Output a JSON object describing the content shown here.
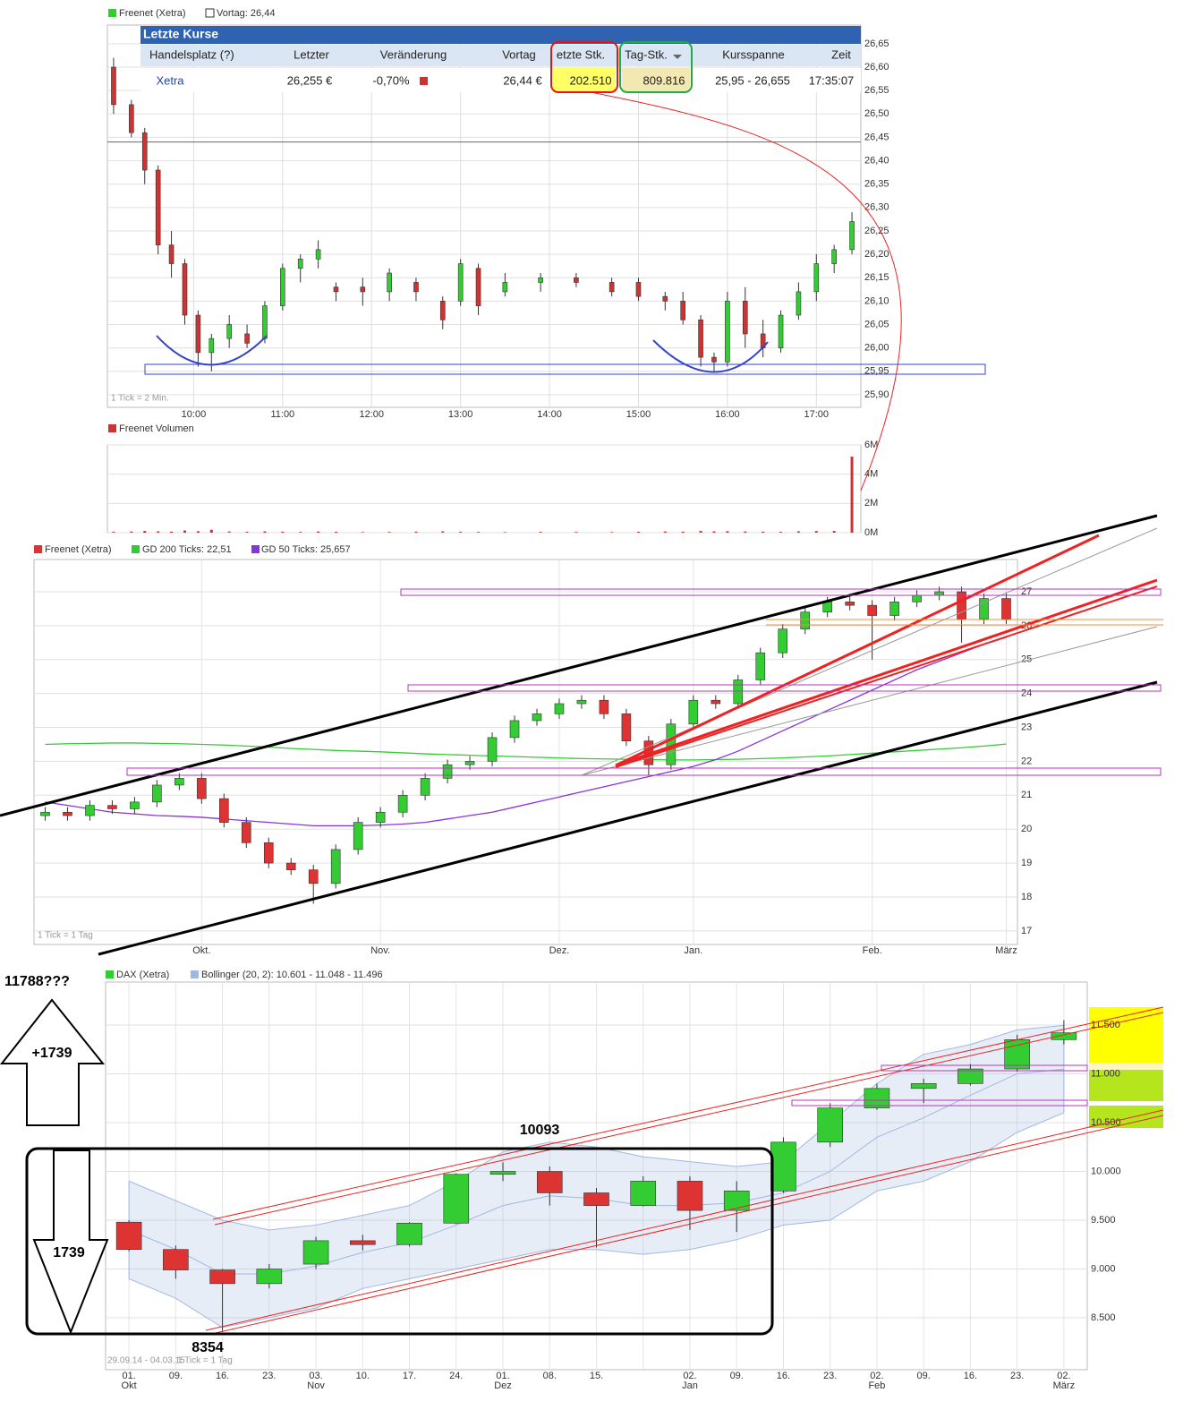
{
  "quote_table": {
    "title": "Letzte Kurse",
    "columns": [
      "Handelsplatz (?)",
      "Letzter",
      "Veränderung",
      "Vortag",
      "etzte Stk.",
      "Tag-Stk.",
      "Kursspanne",
      "Zeit"
    ],
    "rows": [
      [
        "Xetra",
        "26,255 €",
        "-0,70%",
        "26,44 €",
        "202.510",
        "809.816",
        "25,95 - 26,655",
        "17:35:07"
      ]
    ]
  },
  "chart_data": [
    {
      "type": "candlestick",
      "note": "1 Tick = 2 Min.",
      "reference_line": {
        "label": "Vortag: 26,44",
        "value": 26.44,
        "color": "#666666"
      },
      "xlim": [
        9.03,
        17.5
      ],
      "ylim": [
        25.873,
        26.69
      ],
      "grid": true,
      "xticks": [
        {
          "value": 10,
          "label": "10:00"
        },
        {
          "value": 11,
          "label": "11:00"
        },
        {
          "value": 12,
          "label": "12:00"
        },
        {
          "value": 13,
          "label": "13:00"
        },
        {
          "value": 14,
          "label": "14:00"
        },
        {
          "value": 15,
          "label": "15:00"
        },
        {
          "value": 16,
          "label": "16:00"
        },
        {
          "value": 17,
          "label": "17:00"
        }
      ],
      "yticks": [
        {
          "value": 25.9,
          "label": "25,90"
        },
        {
          "value": 25.95,
          "label": "25,95"
        },
        {
          "value": 26,
          "label": "26,00"
        },
        {
          "value": 26.05,
          "label": "26,05"
        },
        {
          "value": 26.1,
          "label": "26,10"
        },
        {
          "value": 26.15,
          "label": "26,15"
        },
        {
          "value": 26.2,
          "label": "26,20"
        },
        {
          "value": 26.25,
          "label": "26,25"
        },
        {
          "value": 26.3,
          "label": "26,30"
        },
        {
          "value": 26.35,
          "label": "26,35"
        },
        {
          "value": 26.4,
          "label": "26,40"
        },
        {
          "value": 26.45,
          "label": "26,45"
        },
        {
          "value": 26.5,
          "label": "26,50"
        },
        {
          "value": 26.55,
          "label": "26,55"
        },
        {
          "value": 26.6,
          "label": "26,60"
        },
        {
          "value": 26.65,
          "label": "26,65"
        }
      ],
      "x": [
        9.1,
        9.3,
        9.45,
        9.6,
        9.75,
        9.9,
        10.05,
        10.2,
        10.4,
        10.6,
        10.8,
        11.0,
        11.2,
        11.4,
        11.6,
        11.9,
        12.2,
        12.5,
        12.8,
        13.0,
        13.2,
        13.5,
        13.9,
        14.3,
        14.7,
        15.0,
        15.3,
        15.5,
        15.7,
        15.85,
        16.0,
        16.2,
        16.4,
        16.6,
        16.8,
        17.0,
        17.2,
        17.4
      ],
      "series": [
        {
          "name": "Freenet (Xetra)",
          "color": "#33cc33",
          "down_color": "#cc3333",
          "open": [
            26.6,
            26.52,
            26.46,
            26.38,
            26.22,
            26.18,
            26.07,
            25.99,
            26.02,
            26.03,
            26.02,
            26.09,
            26.17,
            26.19,
            26.13,
            26.13,
            26.12,
            26.14,
            26.1,
            26.1,
            26.17,
            26.12,
            26.14,
            26.15,
            26.14,
            26.14,
            26.11,
            26.1,
            26.06,
            25.98,
            25.97,
            26.1,
            26.03,
            26.0,
            26.07,
            26.12,
            26.18,
            26.21
          ],
          "high": [
            26.62,
            26.53,
            26.47,
            26.39,
            26.25,
            26.19,
            26.08,
            26.03,
            26.07,
            26.05,
            26.1,
            26.18,
            26.2,
            26.23,
            26.14,
            26.15,
            26.17,
            26.15,
            26.11,
            26.19,
            26.18,
            26.16,
            26.16,
            26.16,
            26.15,
            26.15,
            26.12,
            26.12,
            26.07,
            25.99,
            26.12,
            26.13,
            26.06,
            26.08,
            26.14,
            26.2,
            26.22,
            26.29
          ],
          "low": [
            26.5,
            26.45,
            26.35,
            26.2,
            26.15,
            26.05,
            25.96,
            25.95,
            26.0,
            26.0,
            26.01,
            26.08,
            26.14,
            26.17,
            26.1,
            26.09,
            26.1,
            26.1,
            26.04,
            26.09,
            26.07,
            26.11,
            26.12,
            26.13,
            26.11,
            26.1,
            26.08,
            26.05,
            25.96,
            25.95,
            25.96,
            26.0,
            25.98,
            25.99,
            26.06,
            26.1,
            26.16,
            26.2
          ],
          "close": [
            26.52,
            26.46,
            26.38,
            26.22,
            26.18,
            26.07,
            25.99,
            26.02,
            26.05,
            26.01,
            26.09,
            26.17,
            26.19,
            26.21,
            26.12,
            26.12,
            26.16,
            26.12,
            26.06,
            26.18,
            26.09,
            26.14,
            26.15,
            26.14,
            26.12,
            26.11,
            26.1,
            26.06,
            25.98,
            25.97,
            26.1,
            26.03,
            26.0,
            26.07,
            26.12,
            26.18,
            26.21,
            26.27
          ]
        }
      ]
    },
    {
      "type": "bar",
      "title": "Freenet Volumen",
      "color": "#cc3333",
      "xlim": [
        9.03,
        17.5
      ],
      "ylim": [
        0,
        6000000
      ],
      "grid": true,
      "yticks": [
        {
          "value": 0,
          "label": "0M"
        },
        {
          "value": 2000000,
          "label": "2M"
        },
        {
          "value": 4000000,
          "label": "4M"
        },
        {
          "value": 6000000,
          "label": "6M"
        }
      ],
      "x": [
        9.1,
        9.3,
        9.45,
        9.6,
        9.75,
        9.9,
        10.05,
        10.2,
        10.4,
        10.6,
        10.8,
        11.0,
        11.2,
        11.4,
        11.6,
        11.9,
        12.2,
        12.5,
        12.8,
        13.0,
        13.2,
        13.5,
        13.9,
        14.3,
        14.7,
        15.0,
        15.3,
        15.5,
        15.7,
        15.85,
        16.0,
        16.2,
        16.4,
        16.6,
        16.8,
        17.0,
        17.2,
        17.4
      ],
      "values": [
        60000,
        80000,
        120000,
        90000,
        70000,
        150000,
        100000,
        200000,
        80000,
        60000,
        90000,
        70000,
        50000,
        80000,
        60000,
        40000,
        50000,
        70000,
        90000,
        60000,
        50000,
        40000,
        60000,
        50000,
        40000,
        60000,
        80000,
        70000,
        120000,
        90000,
        100000,
        80000,
        70000,
        60000,
        90000,
        110000,
        120000,
        5200000
      ]
    },
    {
      "type": "candlestick",
      "note": "1 Tick = 1 Tag",
      "ylim": [
        16.6,
        27.95
      ],
      "grid": true,
      "yticks": [
        17,
        18,
        19,
        20,
        21,
        22,
        23,
        24,
        25,
        26,
        27
      ],
      "categories": [
        null,
        null,
        null,
        null,
        null,
        null,
        null,
        "Okt.",
        null,
        null,
        null,
        null,
        null,
        null,
        null,
        "Nov.",
        null,
        null,
        null,
        null,
        null,
        null,
        null,
        "Dez.",
        null,
        null,
        null,
        null,
        null,
        "Jan.",
        null,
        null,
        null,
        null,
        null,
        null,
        null,
        "Feb.",
        null,
        null,
        null,
        null,
        null,
        "März"
      ],
      "series": [
        {
          "name": "Freenet (Xetra)",
          "color": "#33cc33",
          "down_color": "#dd3333",
          "open": [
            20.4,
            20.5,
            20.4,
            20.7,
            20.6,
            20.8,
            21.3,
            21.5,
            20.9,
            20.2,
            19.6,
            19.0,
            18.8,
            18.4,
            19.4,
            20.2,
            20.5,
            21.0,
            21.5,
            21.9,
            22.0,
            22.7,
            23.2,
            23.4,
            23.7,
            23.8,
            23.4,
            22.6,
            21.9,
            23.1,
            23.8,
            23.7,
            24.4,
            25.2,
            25.9,
            26.4,
            26.7,
            26.6,
            26.3,
            26.7,
            26.9,
            27.0,
            26.2,
            26.8
          ],
          "high": [
            20.65,
            20.65,
            20.85,
            20.85,
            20.95,
            21.45,
            21.65,
            21.65,
            21.05,
            20.35,
            19.75,
            19.15,
            18.95,
            19.55,
            20.35,
            20.65,
            21.15,
            21.65,
            22.05,
            22.15,
            22.85,
            23.35,
            23.55,
            23.85,
            23.95,
            23.95,
            23.55,
            22.75,
            23.25,
            23.95,
            23.95,
            24.55,
            25.35,
            26.05,
            26.55,
            26.85,
            26.85,
            26.75,
            26.85,
            27.05,
            27.15,
            27.15,
            26.95,
            26.95
          ],
          "low": [
            20.25,
            20.25,
            20.25,
            20.45,
            20.45,
            20.65,
            21.15,
            20.75,
            20.05,
            19.45,
            18.85,
            18.65,
            17.8,
            18.25,
            19.25,
            20.05,
            20.35,
            20.85,
            21.35,
            21.75,
            21.85,
            22.55,
            23.05,
            23.25,
            23.55,
            23.25,
            22.45,
            21.6,
            21.75,
            22.95,
            23.55,
            23.55,
            24.25,
            25.05,
            25.75,
            26.25,
            26.45,
            25.0,
            26.15,
            26.55,
            26.75,
            25.5,
            26.05,
            26.05
          ],
          "close": [
            20.5,
            20.4,
            20.7,
            20.6,
            20.8,
            21.3,
            21.5,
            20.9,
            20.2,
            19.6,
            19.0,
            18.8,
            18.4,
            19.4,
            20.2,
            20.5,
            21.0,
            21.5,
            21.9,
            22.0,
            22.7,
            23.2,
            23.4,
            23.7,
            23.8,
            23.4,
            22.6,
            21.9,
            23.1,
            23.8,
            23.7,
            24.4,
            25.2,
            25.9,
            26.4,
            26.7,
            26.6,
            26.3,
            26.7,
            26.9,
            27.0,
            26.2,
            26.8,
            26.2
          ]
        }
      ],
      "lines": [
        {
          "name": "GD 200 Ticks: 22,51",
          "color": "#33cc33",
          "values": [
            22.5,
            22.52,
            22.53,
            22.54,
            22.54,
            22.53,
            22.52,
            22.5,
            22.48,
            22.45,
            22.42,
            22.38,
            22.35,
            22.32,
            22.3,
            22.28,
            22.25,
            22.22,
            22.2,
            22.18,
            22.16,
            22.14,
            22.12,
            22.1,
            22.08,
            22.07,
            22.06,
            22.05,
            22.04,
            22.04,
            22.05,
            22.06,
            22.08,
            22.1,
            22.13,
            22.16,
            22.2,
            22.24,
            22.28,
            22.32,
            22.36,
            22.4,
            22.45,
            22.51
          ]
        },
        {
          "name": "GD 50 Ticks: 25,657",
          "color": "#8833dd",
          "values": [
            20.8,
            20.7,
            20.6,
            20.5,
            20.45,
            20.4,
            20.38,
            20.35,
            20.3,
            20.25,
            20.2,
            20.15,
            20.1,
            20.1,
            20.1,
            20.12,
            20.15,
            20.2,
            20.3,
            20.4,
            20.5,
            20.65,
            20.8,
            20.95,
            21.1,
            21.25,
            21.4,
            21.55,
            21.7,
            21.85,
            22.05,
            22.3,
            22.6,
            22.9,
            23.2,
            23.5,
            23.8,
            24.1,
            24.4,
            24.7,
            24.95,
            25.2,
            25.45,
            25.657
          ]
        }
      ]
    },
    {
      "type": "candlestick",
      "subtitle": "29.09.14 - 04.03.15",
      "note": "1 Tick = 1 Tag",
      "ylim": [
        7968,
        11940
      ],
      "grid": true,
      "annotations": [
        "11788???",
        "+1739",
        "1739",
        "10093",
        "8354"
      ],
      "yticks": [
        {
          "value": 8500,
          "label": "8.500"
        },
        {
          "value": 9000,
          "label": "9.000"
        },
        {
          "value": 9500,
          "label": "9.500"
        },
        {
          "value": 10000,
          "label": "10.000"
        },
        {
          "value": 10500,
          "label": "10.500"
        },
        {
          "value": 11000,
          "label": "11.000"
        },
        {
          "value": 11500,
          "label": "11.500"
        }
      ],
      "categories": [
        "01.\nOkt",
        "09.",
        "16.",
        "23.",
        "03.\nNov",
        "10.",
        "17.",
        "24.",
        "01.\nDez",
        "08.",
        "15.",
        null,
        "02.\nJan",
        "09.",
        "16.",
        "23.",
        "02.\nFeb",
        "09.",
        "16.",
        "23.",
        "02.\nMärz"
      ],
      "series": [
        {
          "name": "DAX (Xetra)",
          "color": "#33cc33",
          "down_color": "#dd3333",
          "open": [
            9480,
            9200,
            8990,
            8850,
            9050,
            9290,
            9250,
            9470,
            9970,
            10000,
            9780,
            9650,
            9900,
            9600,
            9800,
            10300,
            10650,
            10850,
            10900,
            11050,
            11350
          ],
          "high": [
            9500,
            9240,
            9000,
            9050,
            9330,
            9350,
            9480,
            9980,
            10093,
            10050,
            9830,
            9950,
            9950,
            9900,
            10350,
            10700,
            10900,
            10950,
            11100,
            11400,
            11550
          ],
          "low": [
            9180,
            8900,
            8354,
            8800,
            9000,
            9190,
            9230,
            9460,
            9900,
            9650,
            9220,
            9640,
            9400,
            9380,
            9780,
            10250,
            10630,
            10700,
            10880,
            11020,
            11300
          ],
          "close": [
            9200,
            8990,
            8850,
            9000,
            9290,
            9250,
            9470,
            9970,
            10000,
            9780,
            9650,
            9900,
            9600,
            9800,
            10300,
            10650,
            10850,
            10900,
            11050,
            11350,
            11420
          ]
        }
      ],
      "band": {
        "name": "Bollinger (20, 2): 10.601 - 11.048 - 11.496",
        "color": "#9fb8e0",
        "upper": [
          9900,
          9700,
          9500,
          9400,
          9450,
          9550,
          9650,
          9900,
          10200,
          10300,
          10250,
          10150,
          10100,
          10050,
          10100,
          10500,
          10900,
          11200,
          11300,
          11450,
          11496
        ],
        "middle": [
          9400,
          9200,
          8950,
          8950,
          9030,
          9170,
          9270,
          9450,
          9650,
          9750,
          9720,
          9650,
          9650,
          9680,
          9780,
          10000,
          10350,
          10550,
          10780,
          11000,
          11048
        ],
        "lower": [
          8900,
          8700,
          8400,
          8500,
          8600,
          8800,
          8900,
          9000,
          9100,
          9200,
          9200,
          9150,
          9200,
          9300,
          9450,
          9500,
          9800,
          9900,
          10100,
          10400,
          10601
        ]
      }
    }
  ]
}
